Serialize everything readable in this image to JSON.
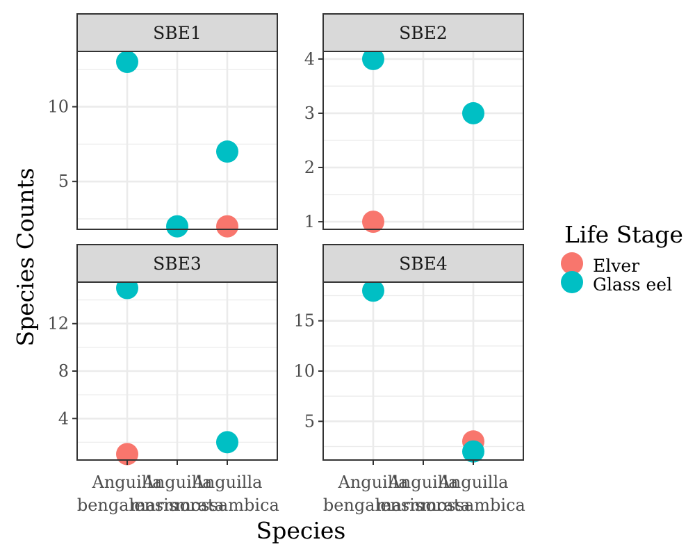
{
  "chart_data": {
    "type": "scatter",
    "facet_by": "sampling site",
    "xlabel": "Species",
    "ylabel": "Species Counts",
    "categories": [
      [
        "Anguilla",
        "bengalensis"
      ],
      [
        "Anguilla",
        "marmorata"
      ],
      [
        "Anguilla",
        "mossambica"
      ]
    ],
    "legend": {
      "title": "Life Stage",
      "position": "right",
      "entries": [
        {
          "name": "Elver",
          "color": "#F8766D"
        },
        {
          "name": "Glass eel",
          "color": "#00BFC4"
        }
      ]
    },
    "panels": [
      {
        "label": "SBE1",
        "ylim": [
          1.8,
          13.7
        ],
        "yticks": [
          5,
          10
        ],
        "points": [
          {
            "species": 0,
            "stage": "Glass eel",
            "value": 13
          },
          {
            "species": 1,
            "stage": "Glass eel",
            "value": 2
          },
          {
            "species": 2,
            "stage": "Glass eel",
            "value": 7
          },
          {
            "species": 2,
            "stage": "Elver",
            "value": 2
          }
        ]
      },
      {
        "label": "SBE2",
        "ylim": [
          0.86,
          4.14
        ],
        "yticks": [
          1,
          2,
          3,
          4
        ],
        "points": [
          {
            "species": 0,
            "stage": "Glass eel",
            "value": 4
          },
          {
            "species": 0,
            "stage": "Elver",
            "value": 1
          },
          {
            "species": 2,
            "stage": "Glass eel",
            "value": 3
          }
        ]
      },
      {
        "label": "SBE3",
        "ylim": [
          0.5,
          15.5
        ],
        "yticks": [
          4,
          8,
          12
        ],
        "points": [
          {
            "species": 0,
            "stage": "Glass eel",
            "value": 15
          },
          {
            "species": 0,
            "stage": "Elver",
            "value": 1
          },
          {
            "species": 2,
            "stage": "Glass eel",
            "value": 2
          }
        ]
      },
      {
        "label": "SBE4",
        "ylim": [
          1.15,
          18.85
        ],
        "yticks": [
          5,
          10,
          15
        ],
        "points": [
          {
            "species": 0,
            "stage": "Glass eel",
            "value": 18
          },
          {
            "species": 2,
            "stage": "Elver",
            "value": 3
          },
          {
            "species": 2,
            "stage": "Glass eel",
            "value": 2
          }
        ]
      }
    ]
  }
}
